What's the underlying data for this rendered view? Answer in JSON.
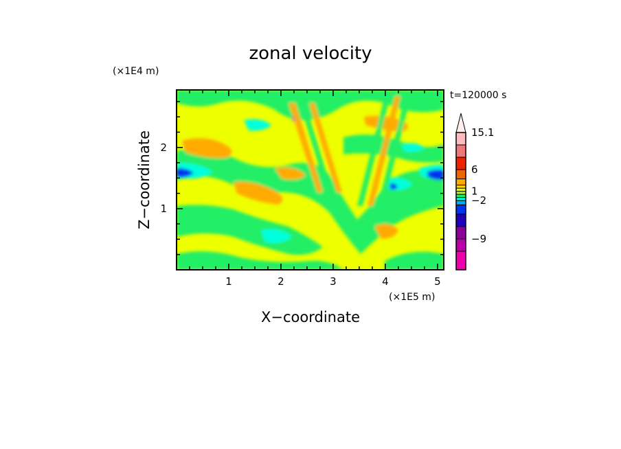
{
  "chart_data": {
    "type": "heatmap",
    "title": "zonal velocity",
    "xlabel": "X−coordinate",
    "ylabel": "Z−coordinate",
    "x_unit": "(×1E5 m)",
    "y_unit": "(×1E4 m)",
    "time_label": "t=120000 s",
    "xlim": [
      0,
      5.12
    ],
    "ylim": [
      0,
      2.94
    ],
    "x_ticks": [
      1,
      2,
      3,
      4,
      5
    ],
    "x_tick_labels": [
      "1",
      "2",
      "3",
      "4",
      "5"
    ],
    "y_ticks": [
      1,
      2
    ],
    "y_tick_labels": [
      "1",
      "2"
    ],
    "colorbar": {
      "levels": [
        -12,
        -10.5,
        -9,
        -7.5,
        -6,
        -4,
        -2,
        -1,
        0,
        1,
        2,
        3,
        4.5,
        6,
        9,
        12,
        15.1
      ],
      "colors": [
        "#ee00aa",
        "#bb00aa",
        "#880099",
        "#2200bb",
        "#0033ee",
        "#00aaee",
        "#00ffdd",
        "#22ee66",
        "#aaee33",
        "#eeff00",
        "#ffdd00",
        "#ffaa00",
        "#ee6600",
        "#ee2200",
        "#ee7777",
        "#ffbbbb"
      ],
      "labeled_levels": [
        15.1,
        6,
        1,
        -2,
        -9
      ],
      "labels": [
        "15.1",
        "6",
        "1",
        "−2",
        "−9"
      ]
    }
  }
}
